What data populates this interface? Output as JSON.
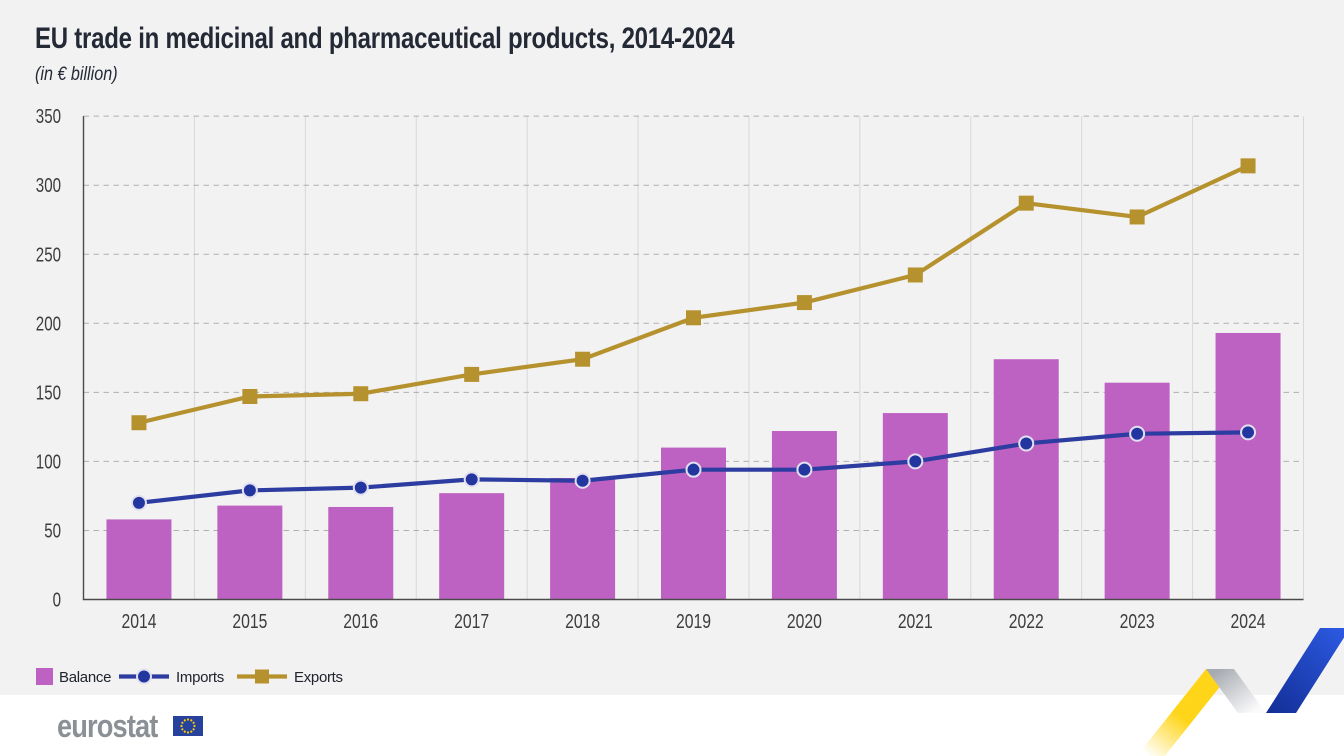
{
  "header": {
    "title": "EU trade in medicinal and pharmaceutical products, 2014-2024",
    "subtitle": "(in € billion)"
  },
  "chart_data": {
    "type": "bar+line combo",
    "categories": [
      "2014",
      "2015",
      "2016",
      "2017",
      "2018",
      "2019",
      "2020",
      "2021",
      "2022",
      "2023",
      "2024"
    ],
    "series": [
      {
        "name": "Balance",
        "type": "bar",
        "color": "#bd62c3",
        "values": [
          58,
          68,
          67,
          77,
          88,
          110,
          122,
          135,
          174,
          157,
          193
        ]
      },
      {
        "name": "Imports",
        "type": "line",
        "marker": "circle",
        "color": "#2c3ca0",
        "marker_fill": "#2336a0",
        "marker_ring": "#e2e0f0",
        "values": [
          70,
          79,
          81,
          87,
          86,
          94,
          94,
          100,
          113,
          120,
          121
        ]
      },
      {
        "name": "Exports",
        "type": "line",
        "marker": "square",
        "color": "#b5922e",
        "values": [
          128,
          147,
          149,
          163,
          174,
          204,
          215,
          235,
          287,
          277,
          314
        ]
      }
    ],
    "title": "EU trade in medicinal and pharmaceutical products, 2014-2024",
    "subtitle": "(in € billion)",
    "xlabel": "",
    "ylabel": "",
    "ylim": [
      0,
      350
    ],
    "yticks": [
      0,
      50,
      100,
      150,
      200,
      250,
      300,
      350
    ],
    "grid": {
      "horizontal": "dashed",
      "vertical": "solid"
    },
    "legend_position": "bottom-left"
  },
  "legend": {
    "items": [
      {
        "label": "Balance",
        "swatch": "square",
        "color": "#bd62c3"
      },
      {
        "label": "Imports",
        "swatch": "line-circle",
        "color": "#2c3ca0"
      },
      {
        "label": "Exports",
        "swatch": "line-square",
        "color": "#b5922e"
      }
    ]
  },
  "branding": {
    "logo_text": "eurostat",
    "flag_blue": "#26429c",
    "flag_star": "#ffcc00"
  },
  "colors": {
    "background": "#f2f2f2",
    "footer_background": "#ffffff",
    "axis": "#4a4a4a",
    "grid_vertical": "#d8d8d8",
    "grid_horizontal": "#9b9b9b",
    "tick_text": "#3d3d3d",
    "title_text": "#242936",
    "ribbon_yellow": "#ffd51a",
    "ribbon_gray": "#a7abb1",
    "ribbon_blue_light": "#2b59e0",
    "ribbon_blue_dark": "#132e96"
  }
}
